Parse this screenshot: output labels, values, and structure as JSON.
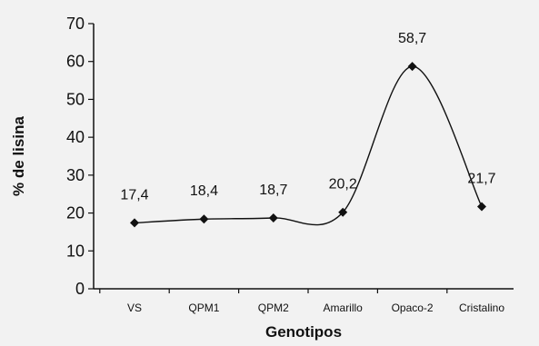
{
  "chart_data": {
    "type": "line",
    "categories": [
      "VS",
      "QPM1",
      "QPM2",
      "Amarillo",
      "Opaco-2",
      "Cristalino"
    ],
    "values": [
      17.4,
      18.4,
      18.7,
      20.2,
      58.7,
      21.7
    ],
    "data_labels": [
      "17,4",
      "18,4",
      "18,7",
      "20,2",
      "58,7",
      "21,7"
    ],
    "yticks": [
      "0",
      "10",
      "20",
      "30",
      "40",
      "50",
      "60",
      "70"
    ],
    "ylim": [
      0,
      70
    ],
    "xlabel": "Genotipos",
    "ylabel": "% de lisina",
    "title": "",
    "grid": false,
    "legend": "none",
    "smooth": true,
    "marker": "diamond",
    "line_color": "#111111",
    "background": "#f2f2f2"
  }
}
